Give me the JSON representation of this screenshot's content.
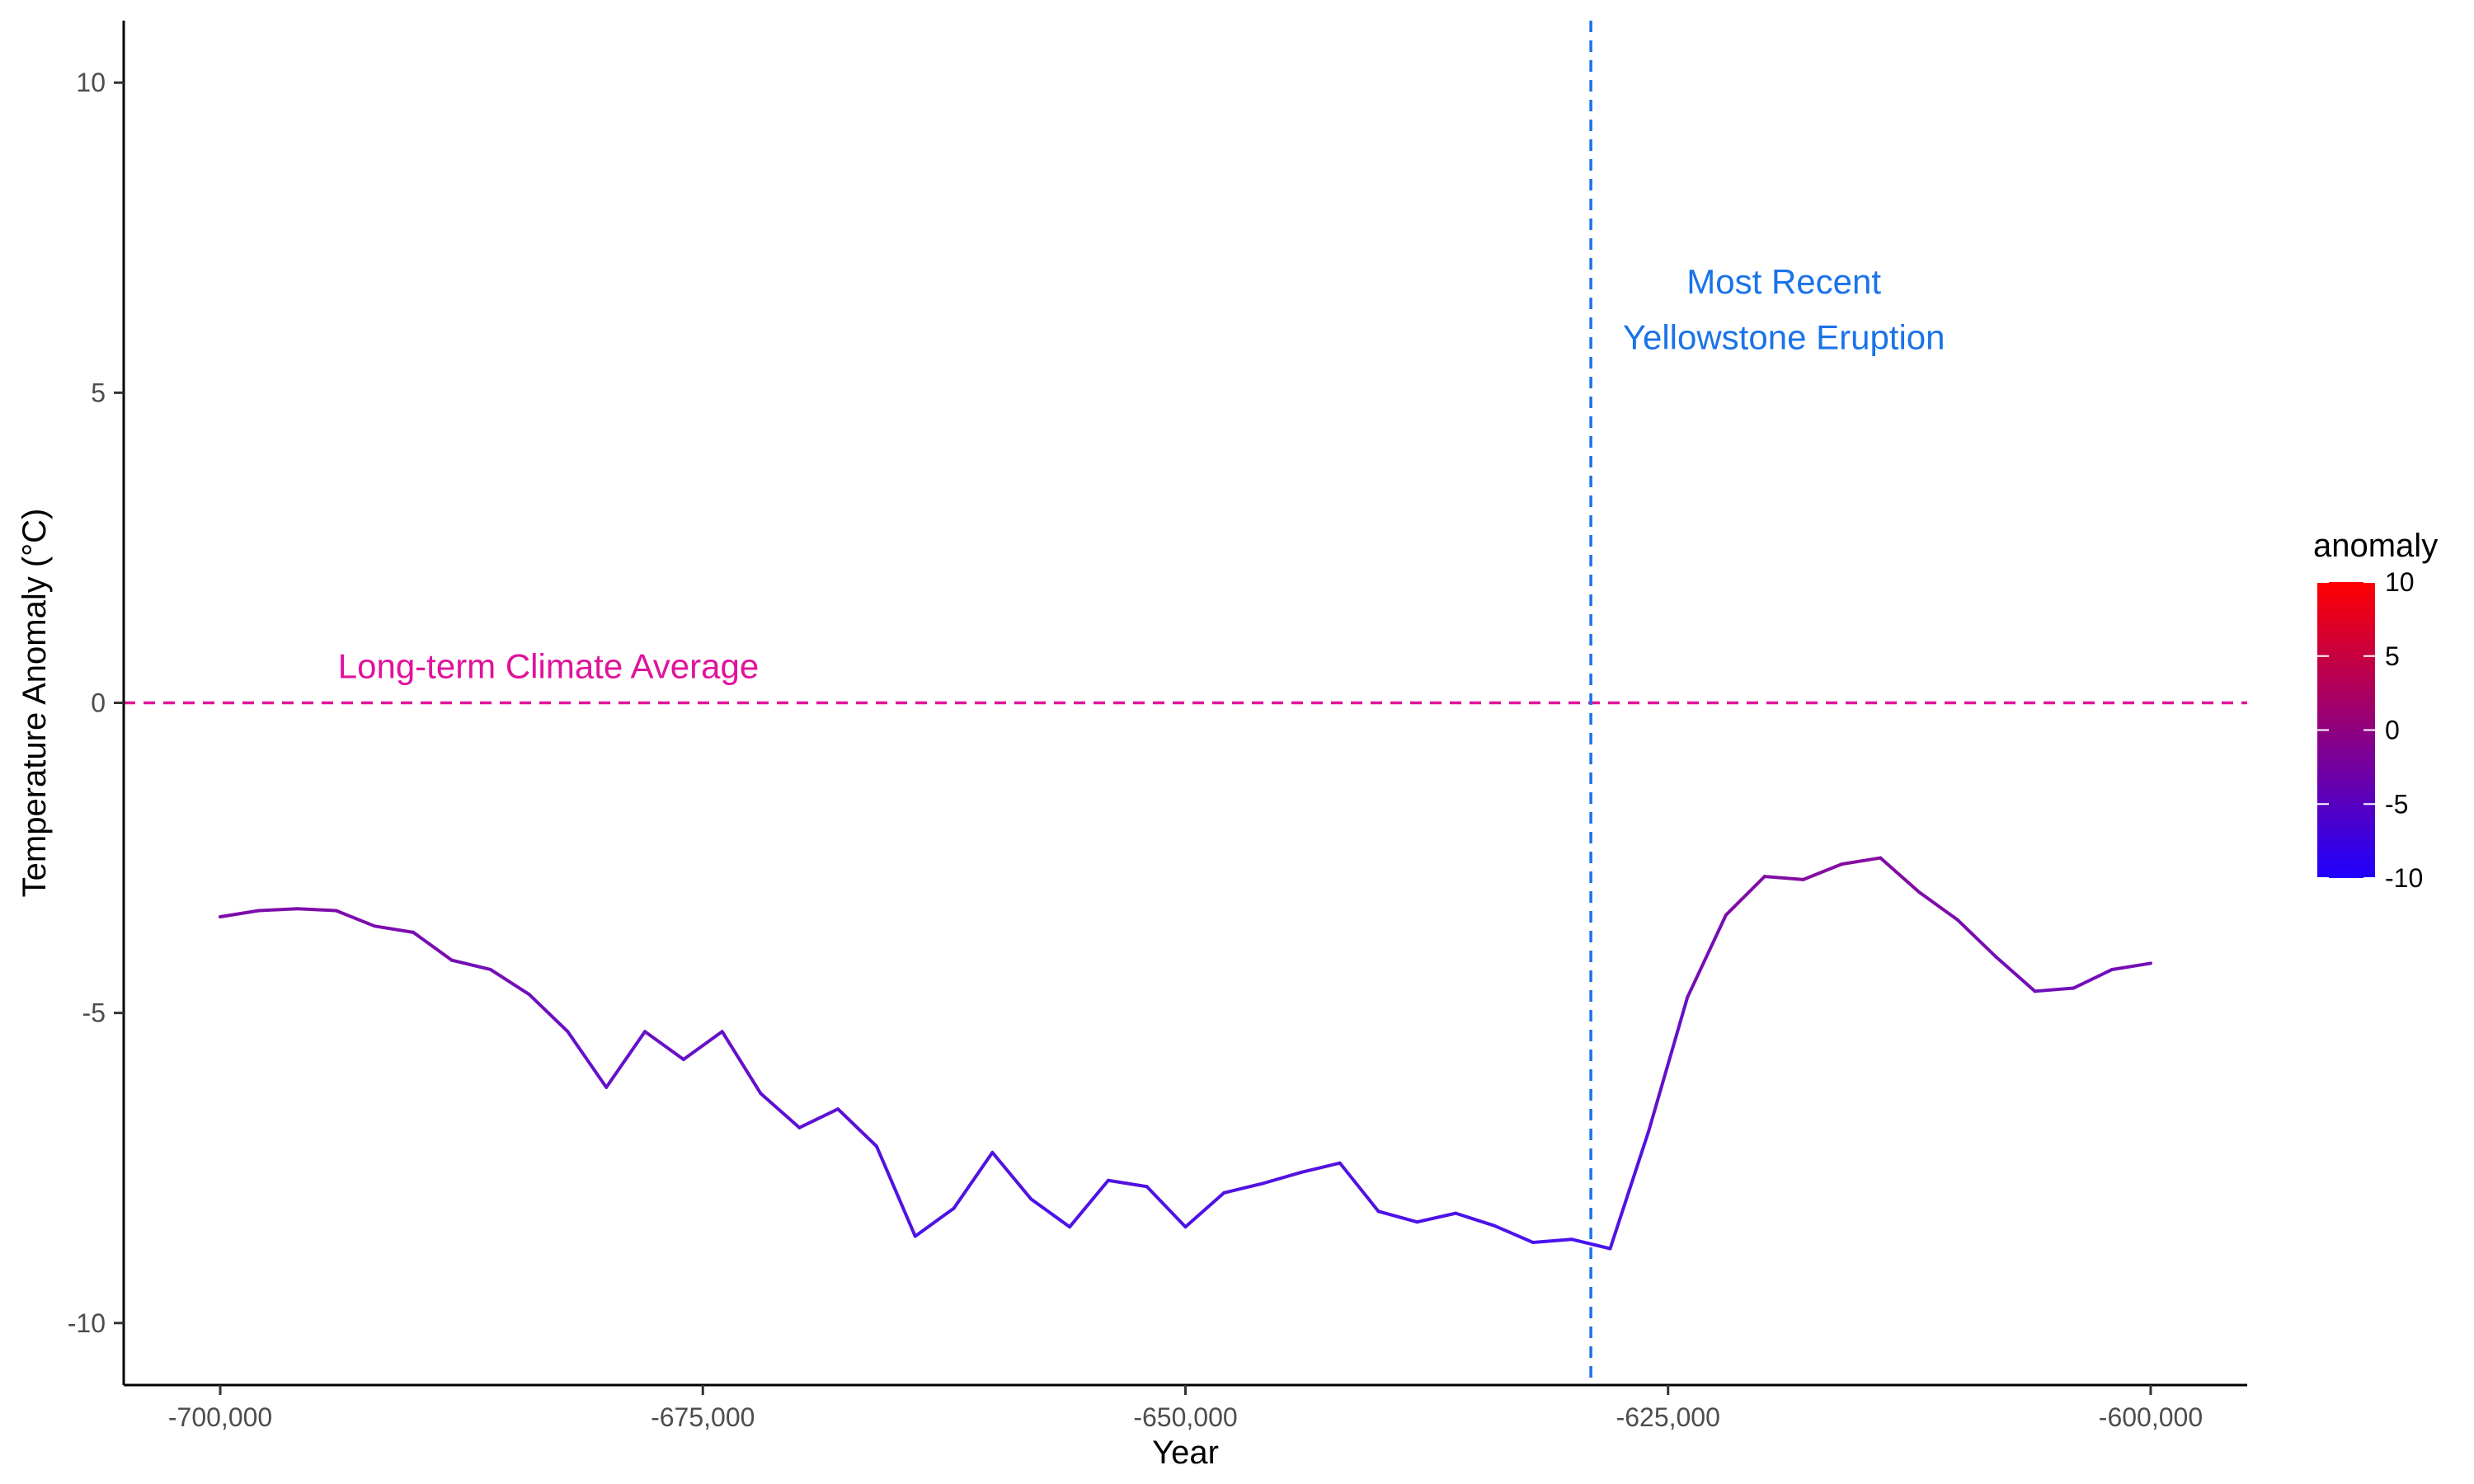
{
  "chart_data": {
    "type": "line",
    "xlabel": "Year",
    "ylabel": "Temperature Anomaly (°C)",
    "xlim": [
      -705000,
      -595000
    ],
    "ylim": [
      -11,
      11
    ],
    "x_ticks": [
      -700000,
      -675000,
      -650000,
      -625000,
      -600000
    ],
    "x_tick_labels": [
      "-700,000",
      "-675,000",
      "-650,000",
      "-625,000",
      "-600,000"
    ],
    "y_ticks": [
      -10,
      -5,
      0,
      5,
      10
    ],
    "y_tick_labels": [
      "-10",
      "-5",
      "0",
      "5",
      "10"
    ],
    "grid": false,
    "series": [
      {
        "x": [
          -700000,
          -698000,
          -696000,
          -694000,
          -692000,
          -690000,
          -688000,
          -686000,
          -684000,
          -682000,
          -680000,
          -678000,
          -676000,
          -674000,
          -672000,
          -670000,
          -668000,
          -666000,
          -664000,
          -662000,
          -660000,
          -658000,
          -656000,
          -654000,
          -652000,
          -650000,
          -648000,
          -646000,
          -644000,
          -642000,
          -640000,
          -638000,
          -636000,
          -634000,
          -632000,
          -630000,
          -628000,
          -626000,
          -624000,
          -622000,
          -620000,
          -618000,
          -616000,
          -614000,
          -612000,
          -610000,
          -608000,
          -606000,
          -604000,
          -602000,
          -600000
        ],
        "y": [
          -3.45,
          -3.35,
          -3.32,
          -3.35,
          -3.6,
          -3.7,
          -4.15,
          -4.3,
          -4.7,
          -5.3,
          -6.2,
          -5.3,
          -5.75,
          -5.3,
          -6.3,
          -6.85,
          -6.55,
          -7.15,
          -8.6,
          -8.15,
          -7.25,
          -8.0,
          -8.45,
          -7.7,
          -7.8,
          -8.45,
          -7.9,
          -7.75,
          -7.57,
          -7.42,
          -8.2,
          -8.37,
          -8.23,
          -8.43,
          -8.7,
          -8.65,
          -8.8,
          -6.9,
          -4.75,
          -3.42,
          -2.8,
          -2.85,
          -2.6,
          -2.5,
          -3.05,
          -3.5,
          -4.1,
          -4.65,
          -4.6,
          -4.3,
          -4.2
        ]
      }
    ],
    "reference_lines": [
      {
        "orientation": "horizontal",
        "value": 0,
        "style": "dashed",
        "color": "#e0139b",
        "label": "Long-term Climate Average",
        "label_x": -683000,
        "label_y": 0.4
      },
      {
        "orientation": "vertical",
        "value": -629000,
        "style": "dashed",
        "color": "#1a73e8",
        "label_lines": [
          "Most Recent",
          "Yellowstone Eruption"
        ],
        "label_x": -619000,
        "label_y": [
          6.6,
          5.7
        ]
      }
    ],
    "colors": {
      "line_low": "#3c14ff",
      "line_high": "#ff0000",
      "line_mid": "#b000c8"
    },
    "legend": {
      "title": "anomaly",
      "placement": "right",
      "type": "colorbar",
      "range": [
        -10,
        10
      ],
      "ticks": [
        10,
        5,
        0,
        -5,
        -10
      ],
      "tick_labels": [
        "10",
        "5",
        "0",
        "-5",
        "-10"
      ],
      "color_low": "#1f00ff",
      "color_high": "#ff0000"
    }
  }
}
